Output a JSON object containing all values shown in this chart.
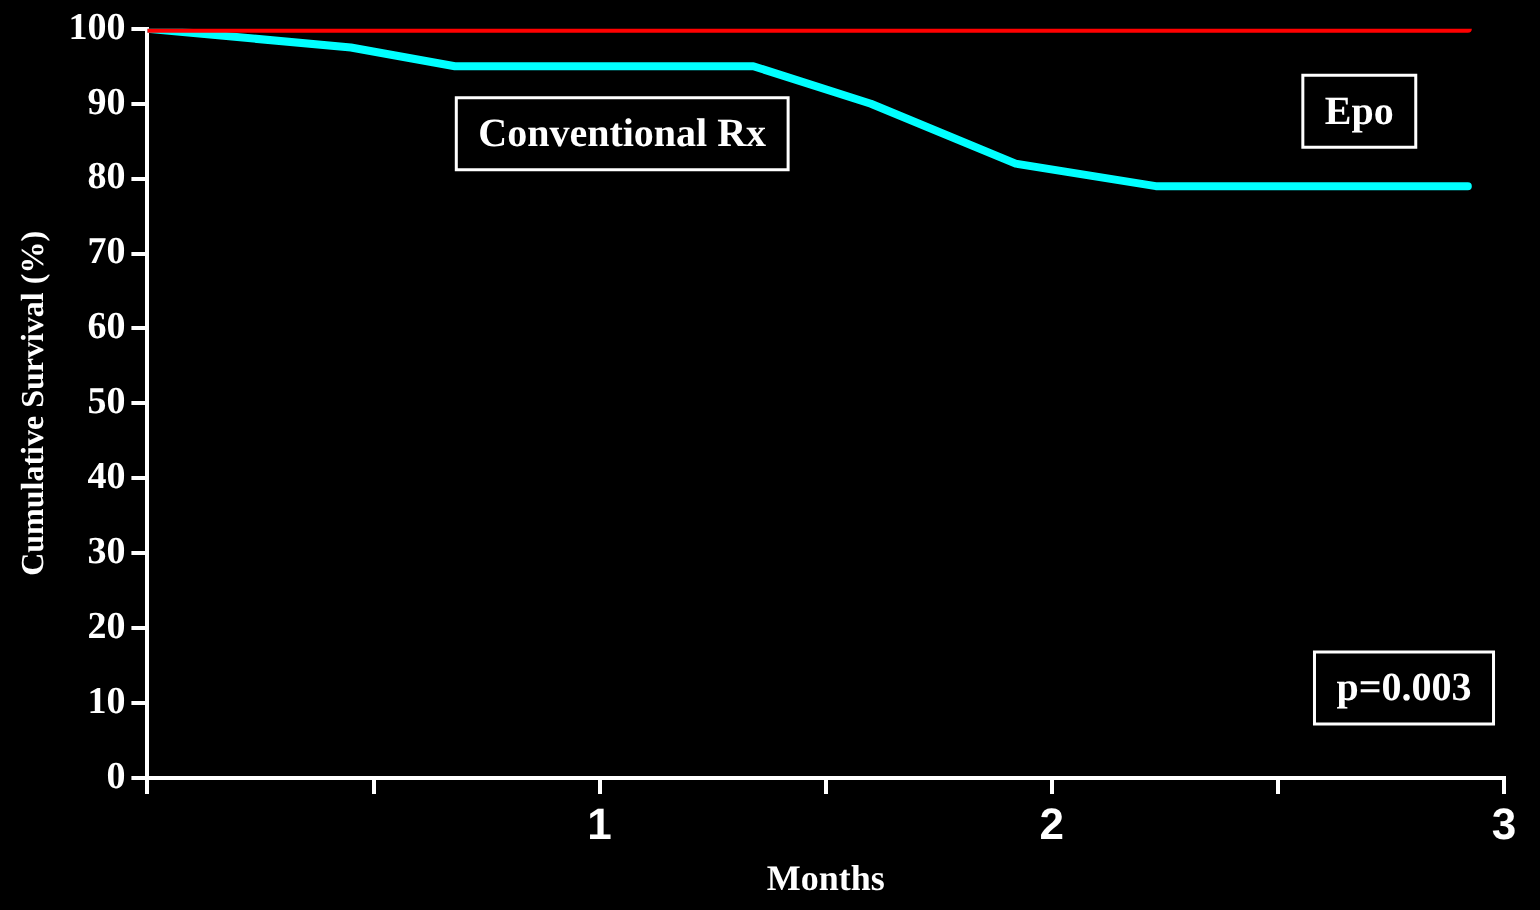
{
  "chart_data": {
    "type": "line",
    "xlabel": "Months",
    "ylabel": "Cumulative Survival (%)",
    "xlim": [
      0,
      3
    ],
    "xticks": [
      {
        "value": 0,
        "label": null
      },
      {
        "value": 0.5,
        "label": null
      },
      1,
      {
        "value": 1.5,
        "label": null
      },
      2,
      {
        "value": 2.5,
        "label": null
      },
      3
    ],
    "ylim": [
      0,
      100
    ],
    "yticks": [
      0,
      10,
      20,
      30,
      40,
      50,
      60,
      70,
      80,
      90,
      100
    ],
    "series": [
      {
        "name": "Epo",
        "color": "#ff0000",
        "x": [
          0,
          2.92
        ],
        "values": [
          100,
          100
        ]
      },
      {
        "name": "Conventional Rx",
        "color": "#00ffff",
        "x": [
          0,
          0.45,
          0.68,
          1.34,
          1.6,
          1.92,
          2.23,
          2.92
        ],
        "values": [
          100,
          97.5,
          95,
          95,
          90,
          82,
          79,
          79
        ]
      }
    ],
    "annotations": [
      "p=0.003"
    ],
    "grid": false,
    "legend": false,
    "marker": "none",
    "line_style": "solid"
  }
}
